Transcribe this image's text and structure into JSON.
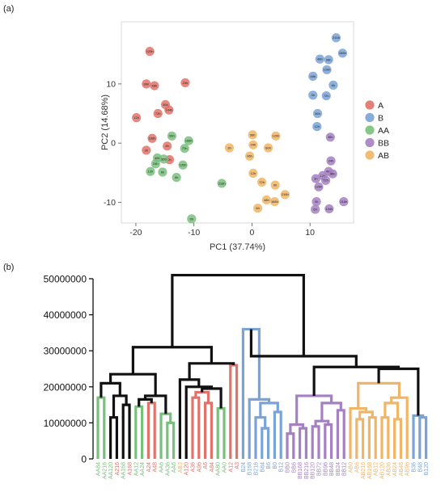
{
  "chart_data": [
    {
      "panel": "(a)",
      "type": "scatter",
      "xlabel": "PC1 (37.74%)",
      "ylabel": "PC2 (14.68%)",
      "xlim": [
        -22.5,
        17.5
      ],
      "ylim": [
        -13.5,
        20.5
      ],
      "xticks": [
        -20,
        -10,
        0,
        10
      ],
      "yticks": [
        -10,
        0,
        10
      ],
      "grid": false,
      "legend_position": "right",
      "series": [
        {
          "name": "A",
          "color": "#e0736a",
          "points": [
            {
              "x": -17.6,
              "y": 15.5,
              "label": "120h"
            },
            {
              "x": -18.2,
              "y": 10,
              "label": "96h"
            },
            {
              "x": -16.8,
              "y": 9.7,
              "label": "48h"
            },
            {
              "x": -11.5,
              "y": 10.2,
              "label": "24h"
            },
            {
              "x": -14.9,
              "y": 6.5,
              "label": "36h"
            },
            {
              "x": -14.3,
              "y": 5.6,
              "label": "144h"
            },
            {
              "x": -16.2,
              "y": 5.0,
              "label": "72h"
            },
            {
              "x": -19.9,
              "y": 4.3,
              "label": "12h"
            },
            {
              "x": -17.2,
              "y": 0.8,
              "label": "168h"
            },
            {
              "x": -14.6,
              "y": -0.5,
              "label": "6h"
            },
            {
              "x": -18.2,
              "y": -1.2,
              "label": "3h"
            },
            {
              "x": -14.2,
              "y": -2.8,
              "label": "0h"
            }
          ]
        },
        {
          "name": "B",
          "color": "#7aa3d6",
          "points": [
            {
              "x": 14.5,
              "y": 17.8,
              "label": "216h"
            },
            {
              "x": 15.6,
              "y": 15.2,
              "label": "168h"
            },
            {
              "x": 11.7,
              "y": 14.2,
              "label": "48h"
            },
            {
              "x": 13.2,
              "y": 14.1,
              "label": "96h"
            },
            {
              "x": 12.9,
              "y": 12.4,
              "label": "120h"
            },
            {
              "x": 10.5,
              "y": 11.3,
              "label": "48h"
            },
            {
              "x": 14.0,
              "y": 9.8,
              "label": "6h"
            },
            {
              "x": 10.5,
              "y": 8.1,
              "label": "3h"
            },
            {
              "x": 12.8,
              "y": 8.0,
              "label": "72h"
            },
            {
              "x": 11.3,
              "y": 5.0,
              "label": "36h"
            },
            {
              "x": 11.2,
              "y": 2.8,
              "label": "12h"
            }
          ]
        },
        {
          "name": "AA",
          "color": "#79c07c",
          "points": [
            {
              "x": -13.8,
              "y": 1.2,
              "label": "96h"
            },
            {
              "x": -10.9,
              "y": 0.4,
              "label": "168h"
            },
            {
              "x": -11.6,
              "y": -0.9,
              "label": "72h"
            },
            {
              "x": -16.3,
              "y": -2.5,
              "label": "48h"
            },
            {
              "x": -15.2,
              "y": -2.7,
              "label": "36h"
            },
            {
              "x": -16.6,
              "y": -3.5,
              "label": "24h"
            },
            {
              "x": -11.9,
              "y": -3.7,
              "label": "120h"
            },
            {
              "x": -17.5,
              "y": -4.8,
              "label": "12h"
            },
            {
              "x": -15.4,
              "y": -4.9,
              "label": "6h"
            },
            {
              "x": -13.0,
              "y": -5.8,
              "label": "0h"
            },
            {
              "x": -5.2,
              "y": -6.8,
              "label": "216h"
            },
            {
              "x": -10.4,
              "y": -12.8,
              "label": "0h"
            }
          ]
        },
        {
          "name": "BB",
          "color": "#a580c2",
          "points": [
            {
              "x": 13.5,
              "y": 1.0,
              "label": "36h"
            },
            {
              "x": 13.6,
              "y": -3.0,
              "label": "24h"
            },
            {
              "x": 13.2,
              "y": -4.8,
              "label": "48h"
            },
            {
              "x": 13.9,
              "y": -5.2,
              "label": "96h"
            },
            {
              "x": 12.2,
              "y": -5.5,
              "label": "12h"
            },
            {
              "x": 11.0,
              "y": -6.0,
              "label": "3h"
            },
            {
              "x": 12.7,
              "y": -6.3,
              "label": "72h"
            },
            {
              "x": 11.5,
              "y": -7.4,
              "label": "120h"
            },
            {
              "x": 11.1,
              "y": -9.9,
              "label": "0h"
            },
            {
              "x": 15.8,
              "y": -9.9,
              "label": "216h"
            },
            {
              "x": 10.9,
              "y": -11.2,
              "label": "6h"
            },
            {
              "x": 13.3,
              "y": -11.1,
              "label": "144h"
            }
          ]
        },
        {
          "name": "AB",
          "color": "#f0b566",
          "points": [
            {
              "x": -3.9,
              "y": -0.8,
              "label": "3h"
            },
            {
              "x": 0.1,
              "y": 1.4,
              "label": "36h"
            },
            {
              "x": 4.1,
              "y": 1.2,
              "label": "120h"
            },
            {
              "x": 0.2,
              "y": -0.3,
              "label": "24h"
            },
            {
              "x": 2.8,
              "y": -0.8,
              "label": "60h"
            },
            {
              "x": -0.4,
              "y": -2.2,
              "label": "96h"
            },
            {
              "x": 0.2,
              "y": -5.1,
              "label": "12h"
            },
            {
              "x": 1.7,
              "y": -6.6,
              "label": "72h"
            },
            {
              "x": 4.0,
              "y": -7.1,
              "label": "0h"
            },
            {
              "x": 5.7,
              "y": -8.7,
              "label": "216h"
            },
            {
              "x": 2.5,
              "y": -9.6,
              "label": "48h"
            },
            {
              "x": 3.9,
              "y": -9.9,
              "label": "168h"
            },
            {
              "x": 1.0,
              "y": -11.0,
              "label": "6h"
            }
          ]
        }
      ]
    },
    {
      "panel": "(b)",
      "type": "dendrogram",
      "ylim": [
        0,
        50000000
      ],
      "yticks": [
        0,
        10000000,
        20000000,
        30000000,
        40000000,
        50000000
      ],
      "ytick_labels": [
        "0",
        "10000000",
        "20000000",
        "30000000",
        "40000000",
        "50000000"
      ],
      "grid": false,
      "group_colors": {
        "AA": "#79c07c",
        "A": "#e0736a",
        "AB": "#f0b566",
        "B": "#7aa3d6",
        "BB": "#a580c2",
        "link": "#111111"
      },
      "leaves": [
        {
          "label": "AA84",
          "group": "AA"
        },
        {
          "label": "AA216",
          "group": "AA"
        },
        {
          "label": "AA120",
          "group": "AA"
        },
        {
          "label": "A216",
          "group": "A"
        },
        {
          "label": "AA168",
          "group": "AA"
        },
        {
          "label": "A168",
          "group": "A"
        },
        {
          "label": "AA12",
          "group": "AA"
        },
        {
          "label": "AA24",
          "group": "AA"
        },
        {
          "label": "A24",
          "group": "A"
        },
        {
          "label": "A48",
          "group": "A"
        },
        {
          "label": "AA6",
          "group": "AA"
        },
        {
          "label": "AA36",
          "group": "AA"
        },
        {
          "label": "AA6",
          "group": "AA"
        },
        {
          "label": "AB3",
          "group": "AB"
        },
        {
          "label": "A120",
          "group": "A"
        },
        {
          "label": "A36",
          "group": "A"
        },
        {
          "label": "A96",
          "group": "A"
        },
        {
          "label": "A6",
          "group": "A"
        },
        {
          "label": "A84",
          "group": "A"
        },
        {
          "label": "AA80",
          "group": "AA"
        },
        {
          "label": "AA0",
          "group": "AA"
        },
        {
          "label": "A12",
          "group": "A"
        },
        {
          "label": "A3",
          "group": "A"
        },
        {
          "label": "B24",
          "group": "B"
        },
        {
          "label": "B168",
          "group": "B"
        },
        {
          "label": "B216",
          "group": "B"
        },
        {
          "label": "B84",
          "group": "B"
        },
        {
          "label": "B6",
          "group": "B"
        },
        {
          "label": "B0",
          "group": "B"
        },
        {
          "label": "B12",
          "group": "B"
        },
        {
          "label": "BB0",
          "group": "BB"
        },
        {
          "label": "BB6",
          "group": "BB"
        },
        {
          "label": "BB168",
          "group": "BB"
        },
        {
          "label": "BB216",
          "group": "BB"
        },
        {
          "label": "BB120",
          "group": "BB"
        },
        {
          "label": "BB72",
          "group": "BB"
        },
        {
          "label": "BB96",
          "group": "BB"
        },
        {
          "label": "BB48",
          "group": "BB"
        },
        {
          "label": "BB24",
          "group": "BB"
        },
        {
          "label": "BB12",
          "group": "BB"
        },
        {
          "label": "AB0",
          "group": "AB"
        },
        {
          "label": "AB6",
          "group": "AB"
        },
        {
          "label": "AB216",
          "group": "AB"
        },
        {
          "label": "AB168",
          "group": "AB"
        },
        {
          "label": "AB12",
          "group": "AB"
        },
        {
          "label": "AB120",
          "group": "AB"
        },
        {
          "label": "AB36",
          "group": "AB"
        },
        {
          "label": "AB24",
          "group": "AB"
        },
        {
          "label": "AB48",
          "group": "AB"
        },
        {
          "label": "AB96",
          "group": "AB"
        },
        {
          "label": "B36",
          "group": "B"
        },
        {
          "label": "B48",
          "group": "B"
        },
        {
          "label": "B120",
          "group": "B"
        }
      ],
      "merges": [
        {
          "a": 0,
          "b": 1,
          "h": 17000000
        },
        {
          "a": 2,
          "b": 3,
          "h": 11500000
        },
        {
          "a": 4,
          "b": 5,
          "h": 15000000
        },
        {
          "a": -2,
          "b": -3,
          "h": 17500000
        },
        {
          "a": -1,
          "b": -4,
          "h": 21000000
        },
        {
          "a": 6,
          "b": 7,
          "h": 14500000
        },
        {
          "a": 8,
          "b": 9,
          "h": 15500000
        },
        {
          "a": -6,
          "b": -7,
          "h": 16500000
        },
        {
          "a": 11,
          "b": 12,
          "h": 10000000
        },
        {
          "a": 10,
          "b": -9,
          "h": 12500000
        },
        {
          "a": -8,
          "b": -10,
          "h": 17500000
        },
        {
          "a": -5,
          "b": -11,
          "h": 23500000
        },
        {
          "a": 15,
          "b": 16,
          "h": 17000000
        },
        {
          "a": 17,
          "b": 18,
          "h": 15500000
        },
        {
          "a": -13,
          "b": -14,
          "h": 18500000
        },
        {
          "a": 19,
          "b": 20,
          "h": 14000000
        },
        {
          "a": -15,
          "b": -16,
          "h": 19500000
        },
        {
          "a": 14,
          "b": -17,
          "h": 20000000
        },
        {
          "a": 13,
          "b": -18,
          "h": 22000000
        },
        {
          "a": 21,
          "b": 22,
          "h": 26000000
        },
        {
          "a": -19,
          "b": -20,
          "h": 26500000
        },
        {
          "a": -12,
          "b": -21,
          "h": 31000000
        },
        {
          "a": 26,
          "b": 27,
          "h": 8500000
        },
        {
          "a": 25,
          "b": -23,
          "h": 11500000
        },
        {
          "a": 28,
          "b": 29,
          "h": 13000000
        },
        {
          "a": -24,
          "b": -25,
          "h": 15500000
        },
        {
          "a": 24,
          "b": -26,
          "h": 16500000
        },
        {
          "a": 23,
          "b": -27,
          "h": 36000000
        },
        {
          "a": 30,
          "b": 31,
          "h": 7000000
        },
        {
          "a": 32,
          "b": 33,
          "h": 8500000
        },
        {
          "a": -29,
          "b": -30,
          "h": 9500000
        },
        {
          "a": 34,
          "b": 35,
          "h": 9000000
        },
        {
          "a": 36,
          "b": 37,
          "h": 9500000
        },
        {
          "a": -32,
          "b": -33,
          "h": 10500000
        },
        {
          "a": 38,
          "b": 39,
          "h": 13500000
        },
        {
          "a": -34,
          "b": -35,
          "h": 15500000
        },
        {
          "a": -31,
          "b": -36,
          "h": 17500000
        },
        {
          "a": 41,
          "b": 42,
          "h": 11000000
        },
        {
          "a": 43,
          "b": 44,
          "h": 11500000
        },
        {
          "a": -38,
          "b": -39,
          "h": 13000000
        },
        {
          "a": 40,
          "b": -40,
          "h": 14000000
        },
        {
          "a": 45,
          "b": 46,
          "h": 11500000
        },
        {
          "a": 47,
          "b": 48,
          "h": 11000000
        },
        {
          "a": -42,
          "b": -43,
          "h": 15500000
        },
        {
          "a": 49,
          "b": -44,
          "h": 17000000
        },
        {
          "a": -41,
          "b": -45,
          "h": 21000000
        },
        {
          "a": 51,
          "b": 52,
          "h": 11500000
        },
        {
          "a": 50,
          "b": -47,
          "h": 12000000
        },
        {
          "a": -46,
          "b": -48,
          "h": 25000000
        },
        {
          "a": -37,
          "b": -49,
          "h": 25500000
        },
        {
          "a": -28,
          "b": -50,
          "h": 28500000
        },
        {
          "a": -22,
          "b": -51,
          "h": 51000000
        }
      ]
    }
  ]
}
